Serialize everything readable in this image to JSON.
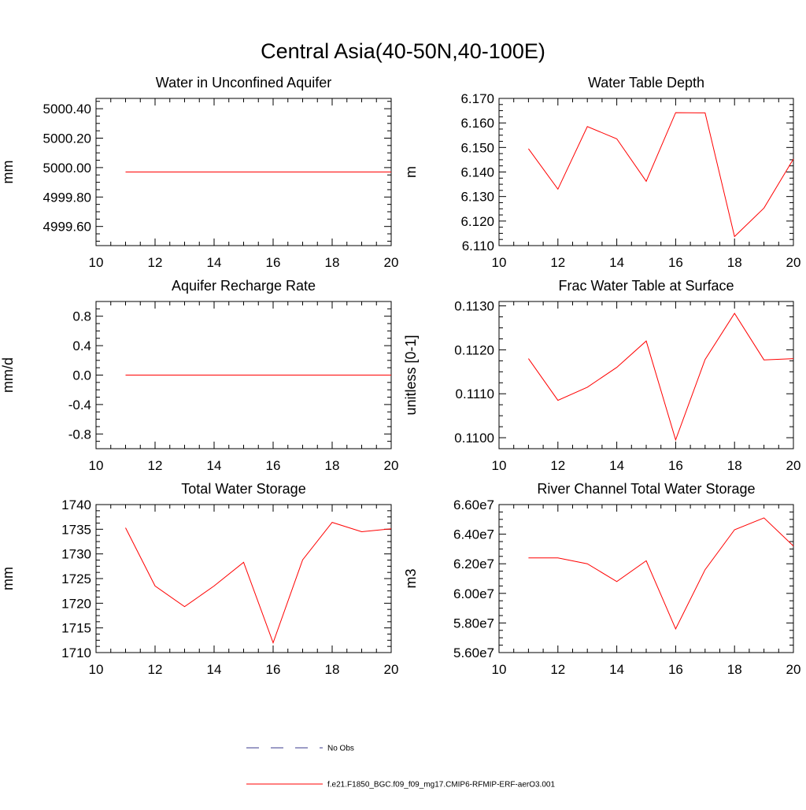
{
  "title": "Central Asia(40-50N,40-100E)",
  "legend": {
    "items": [
      {
        "label": "No Obs",
        "color": "#3a3a8c",
        "style": "dashed"
      },
      {
        "label": "f.e21.F1850_BGC.f09_f09_mg17.CMIP6-RFMIP-ERF-aerO3.001",
        "color": "#ff0000",
        "style": "solid"
      }
    ]
  },
  "chart_data": [
    {
      "type": "line",
      "title": "Water in Unconfined Aquifer",
      "ylabel": "mm",
      "xlim": [
        10,
        20
      ],
      "ylim": [
        4999.47,
        5000.47
      ],
      "xticks": [
        10,
        12,
        14,
        16,
        18,
        20
      ],
      "xtick_labels": [
        "10",
        "12",
        "14",
        "16",
        "18",
        "20"
      ],
      "yticks": [
        4999.6,
        4999.8,
        5000.0,
        5000.2,
        5000.4
      ],
      "ytick_labels": [
        "4999.60",
        "4999.80",
        "5000.00",
        "5000.20",
        "5000.40"
      ],
      "x": [
        11,
        12,
        13,
        14,
        15,
        16,
        17,
        18,
        19,
        20
      ],
      "series": [
        {
          "values": [
            4999.97,
            4999.97,
            4999.97,
            4999.97,
            4999.97,
            4999.97,
            4999.97,
            4999.97,
            4999.97,
            4999.97
          ],
          "color": "#ff0000"
        }
      ]
    },
    {
      "type": "line",
      "title": "Water Table Depth",
      "ylabel": "m",
      "xlim": [
        10,
        20
      ],
      "ylim": [
        6.11,
        6.17
      ],
      "xticks": [
        10,
        12,
        14,
        16,
        18,
        20
      ],
      "xtick_labels": [
        "10",
        "12",
        "14",
        "16",
        "18",
        "20"
      ],
      "yticks": [
        6.11,
        6.12,
        6.13,
        6.14,
        6.15,
        6.16,
        6.17
      ],
      "ytick_labels": [
        "6.110",
        "6.120",
        "6.130",
        "6.140",
        "6.150",
        "6.160",
        "6.170"
      ],
      "x": [
        11,
        12,
        13,
        14,
        15,
        16,
        17,
        18,
        19,
        20
      ],
      "series": [
        {
          "values": [
            6.1495,
            6.133,
            6.1585,
            6.1535,
            6.1362,
            6.1642,
            6.1641,
            6.1137,
            6.1253,
            6.1453
          ],
          "color": "#ff0000"
        }
      ]
    },
    {
      "type": "line",
      "title": "Aquifer Recharge Rate",
      "ylabel": "mm/d",
      "xlim": [
        10,
        20
      ],
      "ylim": [
        -1.0,
        1.0
      ],
      "xticks": [
        10,
        12,
        14,
        16,
        18,
        20
      ],
      "xtick_labels": [
        "10",
        "12",
        "14",
        "16",
        "18",
        "20"
      ],
      "yticks": [
        -0.8,
        -0.4,
        0.0,
        0.4,
        0.8
      ],
      "ytick_labels": [
        "-0.8",
        "-0.4",
        "0.0",
        "0.4",
        "0.8"
      ],
      "x": [
        11,
        12,
        13,
        14,
        15,
        16,
        17,
        18,
        19,
        20
      ],
      "series": [
        {
          "values": [
            0,
            0,
            0,
            0,
            0,
            0,
            0,
            0,
            0,
            0
          ],
          "color": "#ff0000"
        }
      ]
    },
    {
      "type": "line",
      "title": "Frac Water Table at Surface",
      "ylabel": "unitless [0-1]",
      "xlim": [
        10,
        20
      ],
      "ylim": [
        0.10975,
        0.1131
      ],
      "xticks": [
        10,
        12,
        14,
        16,
        18,
        20
      ],
      "xtick_labels": [
        "10",
        "12",
        "14",
        "16",
        "18",
        "20"
      ],
      "yticks": [
        0.11,
        0.111,
        0.112,
        0.113
      ],
      "ytick_labels": [
        "0.1100",
        "0.1110",
        "0.1120",
        "0.1130"
      ],
      "x": [
        11,
        12,
        13,
        14,
        15,
        16,
        17,
        18,
        19,
        20
      ],
      "series": [
        {
          "values": [
            0.1118,
            0.11085,
            0.11115,
            0.1116,
            0.1122,
            0.10995,
            0.11178,
            0.11283,
            0.11177,
            0.1118
          ],
          "color": "#ff0000"
        }
      ]
    },
    {
      "type": "line",
      "title": "Total Water Storage",
      "ylabel": "mm",
      "xlim": [
        10,
        20
      ],
      "ylim": [
        1710,
        1740
      ],
      "xticks": [
        10,
        12,
        14,
        16,
        18,
        20
      ],
      "xtick_labels": [
        "10",
        "12",
        "14",
        "16",
        "18",
        "20"
      ],
      "yticks": [
        1710,
        1715,
        1720,
        1725,
        1730,
        1735,
        1740
      ],
      "ytick_labels": [
        "1710",
        "1715",
        "1720",
        "1725",
        "1730",
        "1735",
        "1740"
      ],
      "x": [
        11,
        12,
        13,
        14,
        15,
        16,
        17,
        18,
        19,
        20
      ],
      "series": [
        {
          "values": [
            1735.3,
            1723.5,
            1719.3,
            1723.5,
            1728.3,
            1712.0,
            1728.8,
            1736.4,
            1734.5,
            1735.1
          ],
          "color": "#ff0000"
        }
      ]
    },
    {
      "type": "line",
      "title": "River Channel Total Water Storage",
      "ylabel": "m3",
      "xlim": [
        10,
        20
      ],
      "ylim": [
        56000000,
        66000000
      ],
      "xticks": [
        10,
        12,
        14,
        16,
        18,
        20
      ],
      "xtick_labels": [
        "10",
        "12",
        "14",
        "16",
        "18",
        "20"
      ],
      "yticks": [
        56000000,
        58000000,
        60000000,
        62000000,
        64000000,
        66000000
      ],
      "ytick_labels": [
        "5.60e7",
        "5.80e7",
        "6.00e7",
        "6.20e7",
        "6.40e7",
        "6.60e7"
      ],
      "x": [
        11,
        12,
        13,
        14,
        15,
        16,
        17,
        18,
        19,
        20
      ],
      "series": [
        {
          "values": [
            62400000,
            62400000,
            62000000,
            60800000,
            62200000,
            57600000,
            61600000,
            64300000,
            65100000,
            63200000
          ],
          "color": "#ff0000"
        }
      ]
    }
  ]
}
